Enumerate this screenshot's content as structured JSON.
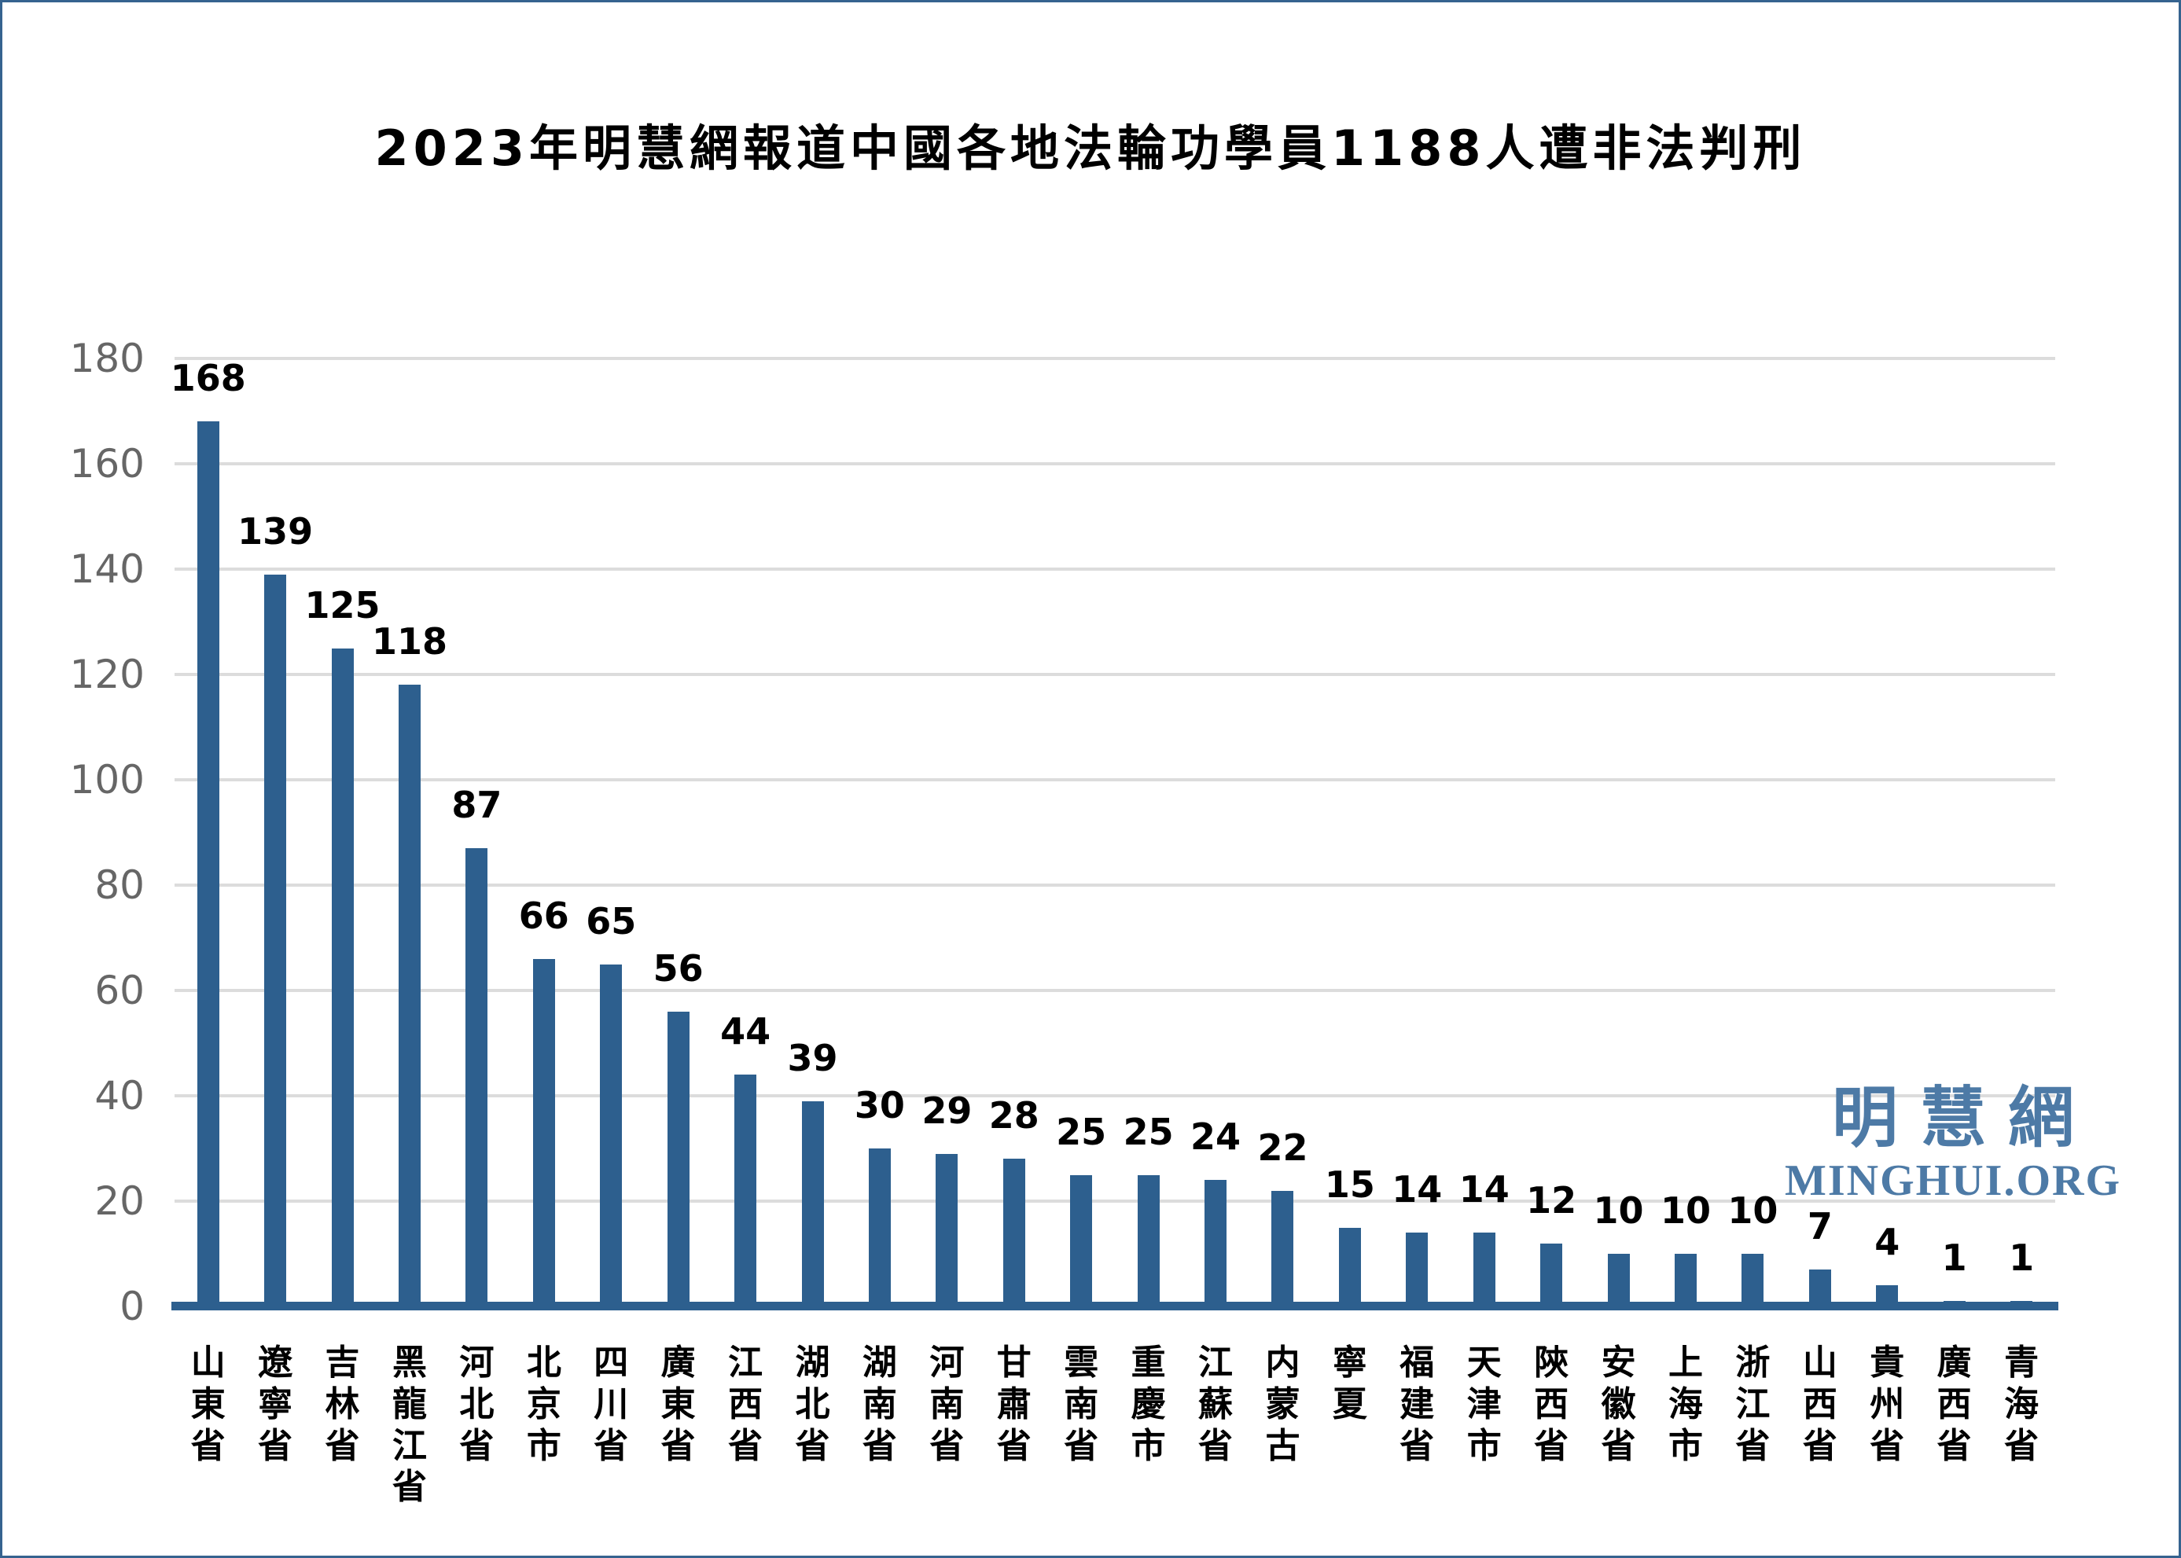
{
  "title": "2023年明慧網報道中國各地法輪功學員1188人遭非法判刑",
  "watermark": {
    "cn": "明慧網",
    "en": "MINGHUI.ORG"
  },
  "colors": {
    "bar": "#2d5f8e",
    "axis_line": "#2d5f8e",
    "grid": "#dcdcdc",
    "y_tick_text": "#666666",
    "value_label_text": "#000000",
    "frame_border": "#35638f",
    "watermark": "#4d7aa6"
  },
  "chart_data": {
    "type": "bar",
    "title": "2023年明慧網報道中國各地法輪功學員1188人遭非法判刑",
    "categories": [
      "山東省",
      "遼寧省",
      "吉林省",
      "黑龍江省",
      "河北省",
      "北京市",
      "四川省",
      "廣東省",
      "江西省",
      "湖北省",
      "湖南省",
      "河南省",
      "甘肅省",
      "雲南省",
      "重慶市",
      "江蘇省",
      "内蒙古",
      "寧夏",
      "福建省",
      "天津市",
      "陝西省",
      "安徽省",
      "上海市",
      "浙江省",
      "山西省",
      "貴州省",
      "廣西省",
      "青海省"
    ],
    "values": [
      168,
      139,
      125,
      118,
      87,
      66,
      65,
      56,
      44,
      39,
      30,
      29,
      28,
      25,
      25,
      24,
      22,
      15,
      14,
      14,
      12,
      10,
      10,
      10,
      7,
      4,
      1,
      1
    ],
    "total": 1188,
    "xlabel": "",
    "ylabel": "",
    "ylim": [
      0,
      180
    ],
    "yticks": [
      0,
      20,
      40,
      60,
      80,
      100,
      120,
      140,
      160,
      180
    ],
    "grid": true,
    "legend": false,
    "value_labels": true
  }
}
